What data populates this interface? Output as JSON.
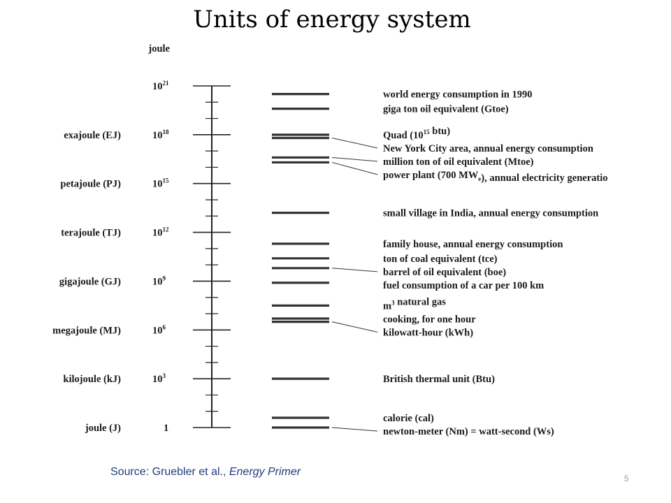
{
  "title": "Units of energy system",
  "axis_header": "joule",
  "units": [
    {
      "name": "",
      "power": "21",
      "exp": 21
    },
    {
      "name": "exajoule (EJ)",
      "power": "18",
      "exp": 18
    },
    {
      "name": "petajoule (PJ)",
      "power": "15",
      "exp": 15
    },
    {
      "name": "terajoule (TJ)",
      "power": "12",
      "exp": 12
    },
    {
      "name": "gigajoule (GJ)",
      "power": "9",
      "exp": 9
    },
    {
      "name": "megajoule (MJ)",
      "power": "6",
      "exp": 6
    },
    {
      "name": "kilojoule (kJ)",
      "power": "3",
      "exp": 3
    },
    {
      "name": "joule (J)",
      "power": "",
      "exp": 0
    }
  ],
  "examples": [
    {
      "parts": [
        {
          "t": "world energy consumption in 1990"
        }
      ],
      "exp": 20.5
    },
    {
      "parts": [
        {
          "t": "giga ton oil equivalent (Gtoe)"
        }
      ],
      "exp": 19.6
    },
    {
      "parts": [
        {
          "t": "Quad (10"
        },
        {
          "t": "15",
          "sup": true
        },
        {
          "t": " btu)"
        }
      ],
      "exp": 18.0
    },
    {
      "parts": [
        {
          "t": "New York City area, annual energy consumption"
        }
      ],
      "exp": 17.8
    },
    {
      "parts": [
        {
          "t": "million ton of oil equivalent (Mtoe)"
        }
      ],
      "exp": 16.6
    },
    {
      "parts": [
        {
          "t": "power plant (700 MW"
        },
        {
          "t": "e",
          "sub": true
        },
        {
          "t": "), annual electricity generatio"
        }
      ],
      "exp": 16.3
    },
    {
      "parts": [
        {
          "t": "small village in India, annual energy consumption"
        }
      ],
      "exp": 13.2
    },
    {
      "parts": [
        {
          "t": "family house, annual energy consumption"
        }
      ],
      "exp": 11.3
    },
    {
      "parts": [
        {
          "t": "ton of coal equivalent (tce)"
        }
      ],
      "exp": 10.4
    },
    {
      "parts": [
        {
          "t": "barrel of oil equivalent (boe)"
        }
      ],
      "exp": 9.8
    },
    {
      "parts": [
        {
          "t": "fuel consumption of a car per 100 km"
        }
      ],
      "exp": 8.9
    },
    {
      "parts": [
        {
          "t": "m"
        },
        {
          "t": "3",
          "sup": true
        },
        {
          "t": " natural gas"
        }
      ],
      "exp": 7.5
    },
    {
      "parts": [
        {
          "t": "cooking, for one hour"
        }
      ],
      "exp": 6.7
    },
    {
      "parts": [
        {
          "t": "kilowatt-hour (kWh)"
        }
      ],
      "exp": 6.5
    },
    {
      "parts": [
        {
          "t": "British thermal unit (Btu)"
        }
      ],
      "exp": 3.0
    },
    {
      "parts": [
        {
          "t": "calorie (cal)"
        }
      ],
      "exp": 0.6
    },
    {
      "parts": [
        {
          "t": "newton-meter (Nm) = watt-second (Ws)"
        }
      ],
      "exp": 0
    }
  ],
  "source": {
    "prefix": "Source: Gruebler et al., ",
    "italic": "Energy Primer"
  },
  "page_number": "5"
}
